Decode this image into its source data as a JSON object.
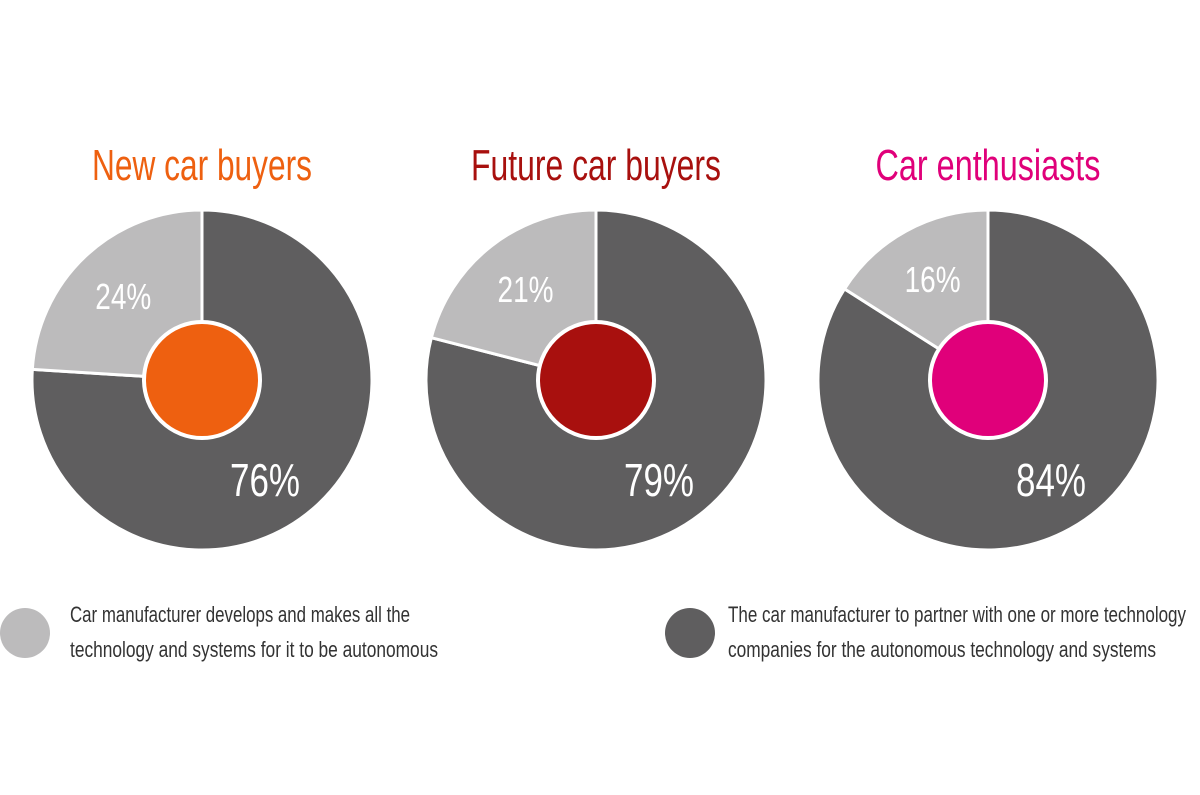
{
  "chart_data": [
    {
      "type": "pie",
      "title": "New car buyers",
      "title_color": "#EE6010",
      "categories": [
        "Car manufacturer develops and makes all the technology and systems for it to be autonomous",
        "The car manufacturer to partner with one or more technology companies for the autonomous technology and systems"
      ],
      "values": [
        24,
        76
      ],
      "labels": [
        "24%",
        "76%"
      ]
    },
    {
      "type": "pie",
      "title": "Future car buyers",
      "title_color": "#A8100E",
      "categories": [
        "Car manufacturer develops and makes all the technology and systems for it to be autonomous",
        "The car manufacturer to partner with one or more technology companies for the autonomous technology and systems"
      ],
      "values": [
        21,
        79
      ],
      "labels": [
        "21%",
        "79%"
      ]
    },
    {
      "type": "pie",
      "title": "Car enthusiasts",
      "title_color": "#E0007A",
      "categories": [
        "Car manufacturer develops and makes all the technology and systems for it to be autonomous",
        "The car manufacturer to partner with one or more technology companies for the autonomous technology and systems"
      ],
      "values": [
        16,
        84
      ],
      "labels": [
        "16%",
        "84%"
      ]
    }
  ],
  "colors": {
    "light": "#BCBBBC",
    "dark": "#5F5E5F"
  },
  "legend": {
    "placement": "bottom",
    "items": [
      {
        "color": "#BCBBBC",
        "lines": [
          "Car manufacturer develops and makes all the",
          "technology and systems for it to be autonomous"
        ]
      },
      {
        "color": "#5F5E5F",
        "lines": [
          "The car manufacturer to partner with one or more technology",
          "companies for the autonomous technology and systems"
        ]
      }
    ]
  }
}
